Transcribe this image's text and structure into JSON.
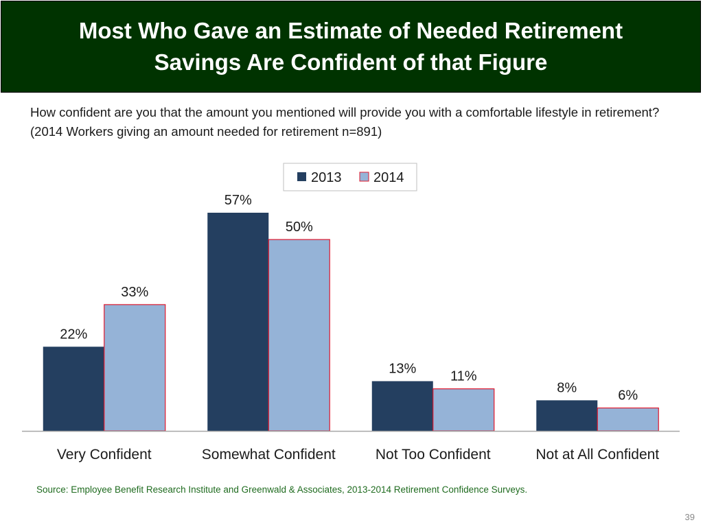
{
  "slide": {
    "title": "Most Who Gave an Estimate of Needed Retirement Savings Are Confident of that Figure",
    "question": "How confident are you that the amount you mentioned will provide you with a comfortable lifestyle in retirement? (2014 Workers giving an amount needed for retirement n=891)",
    "source": "Source:  Employee Benefit Research Institute and Greenwald & Associates, 2013-2014 Retirement Confidence Surveys.",
    "page_number": "39"
  },
  "colors": {
    "title_bg": "#003300",
    "series_2013": "#243f60",
    "series_2014": "#95b3d7",
    "series_2014_border": "#e0182d",
    "source_text": "#1f6b1f"
  },
  "chart_data": {
    "type": "bar",
    "title": "",
    "xlabel": "",
    "ylabel": "",
    "categories": [
      "Very Confident",
      "Somewhat Confident",
      "Not Too Confident",
      "Not at All Confident"
    ],
    "series": [
      {
        "name": "2013",
        "values": [
          22,
          57,
          13,
          8
        ],
        "labels": [
          "22%",
          "57%",
          "13%",
          "8%"
        ]
      },
      {
        "name": "2014",
        "values": [
          33,
          50,
          11,
          6
        ],
        "labels": [
          "33%",
          "50%",
          "11%",
          "6%"
        ]
      }
    ],
    "ylim": [
      0,
      60
    ],
    "grid": false,
    "legend_position": "top-center"
  }
}
